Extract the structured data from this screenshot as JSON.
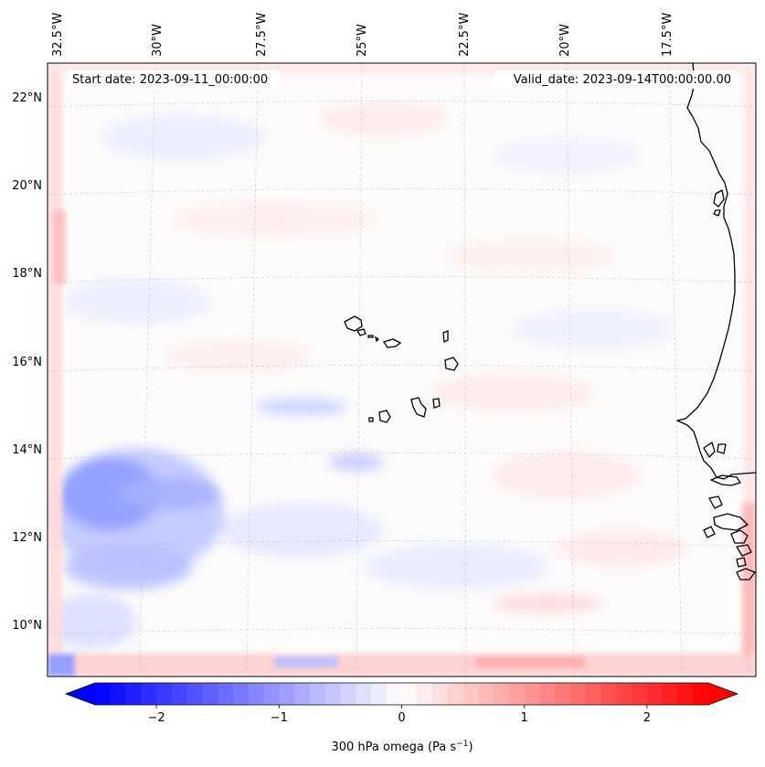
{
  "map": {
    "start_date_label": "Start date: 2023-09-11_00:00:00",
    "valid_date_label": "Valid_date: 2023-09-14T00:00:00.00",
    "lon_labels": [
      "32.5°W",
      "30°W",
      "27.5°W",
      "25°W",
      "22.5°W",
      "20°W",
      "17.5°W"
    ],
    "lat_labels": [
      "22°N",
      "20°N",
      "18°N",
      "16°N",
      "14°N",
      "12°N",
      "10°N"
    ],
    "variable": "omega",
    "level": "300 hPa",
    "region": "Cape Verde / West Africa coast"
  },
  "colorbar": {
    "label_prefix": "300 hPa omega (Pa s",
    "label_exp": "−1",
    "label_suffix": ")",
    "ticks": [
      "−2",
      "−1",
      "0",
      "1",
      "2"
    ],
    "tick_values": [
      -2,
      -1,
      0,
      1,
      2
    ],
    "vmin": -2.5,
    "vmax": 2.5,
    "extend": "both",
    "colormap": "bwr",
    "color_low": "#0000ff",
    "color_mid": "#ffffff",
    "color_high": "#ff0000"
  }
}
